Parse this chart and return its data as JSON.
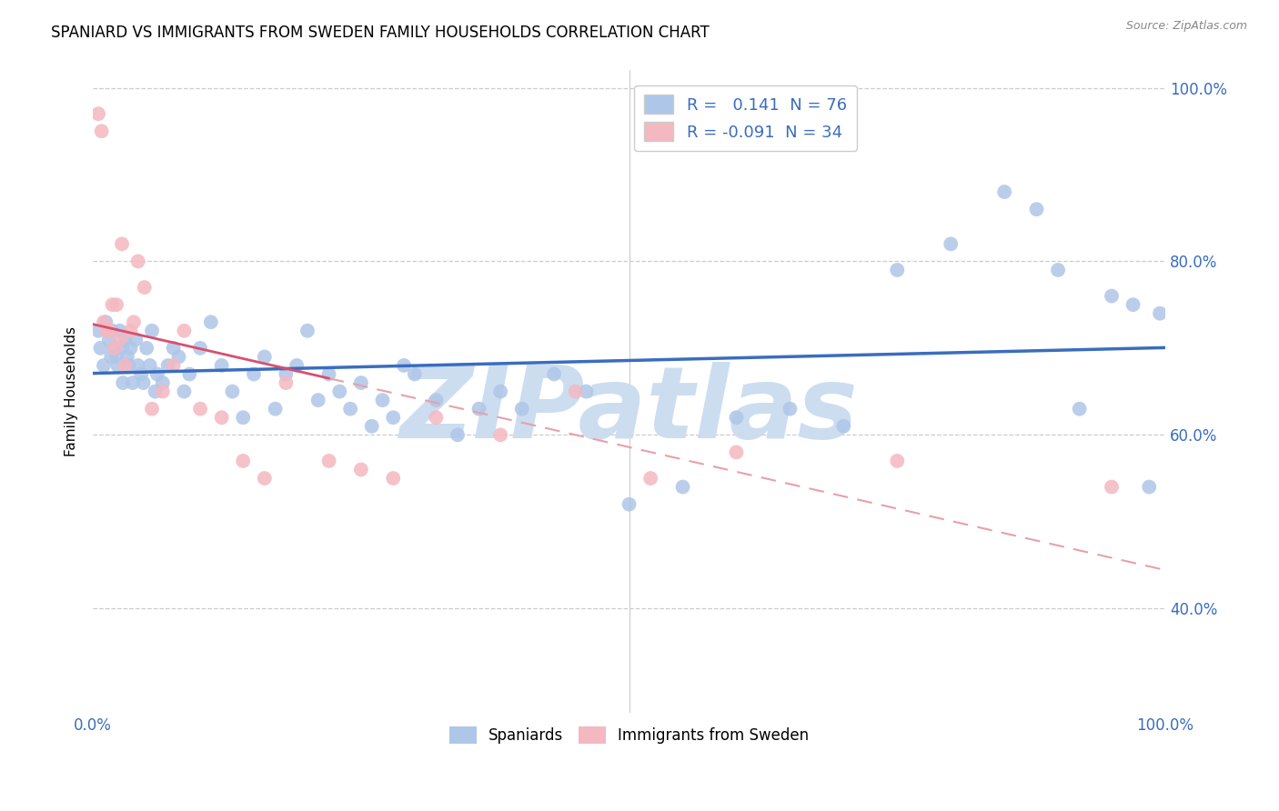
{
  "title": "SPANIARD VS IMMIGRANTS FROM SWEDEN FAMILY HOUSEHOLDS CORRELATION CHART",
  "source": "Source: ZipAtlas.com",
  "ylabel": "Family Households",
  "xlim": [
    0.0,
    1.0
  ],
  "ylim": [
    0.28,
    1.02
  ],
  "spaniards_color": "#aec6e8",
  "immigrants_color": "#f4b8c1",
  "trendline_spaniards_color": "#3a6dbf",
  "trendline_immigrants_color": "#e8a0a8",
  "trendline_immigrants_solid_color": "#d94f6e",
  "watermark": "ZIPatlas",
  "watermark_color": "#ccddf0",
  "background_color": "#ffffff",
  "R_spaniards": 0.141,
  "N_spaniards": 76,
  "R_immigrants": -0.091,
  "N_immigrants": 34,
  "spaniards_x": [
    0.005,
    0.007,
    0.01,
    0.012,
    0.015,
    0.017,
    0.018,
    0.02,
    0.022,
    0.023,
    0.025,
    0.027,
    0.028,
    0.03,
    0.032,
    0.033,
    0.035,
    0.037,
    0.04,
    0.042,
    0.045,
    0.047,
    0.05,
    0.053,
    0.055,
    0.058,
    0.06,
    0.065,
    0.07,
    0.075,
    0.08,
    0.085,
    0.09,
    0.1,
    0.11,
    0.12,
    0.13,
    0.14,
    0.15,
    0.16,
    0.17,
    0.18,
    0.19,
    0.2,
    0.21,
    0.22,
    0.23,
    0.24,
    0.25,
    0.26,
    0.27,
    0.28,
    0.29,
    0.3,
    0.32,
    0.34,
    0.36,
    0.38,
    0.4,
    0.43,
    0.46,
    0.5,
    0.55,
    0.6,
    0.65,
    0.7,
    0.75,
    0.8,
    0.85,
    0.88,
    0.9,
    0.92,
    0.95,
    0.97,
    0.985,
    0.995
  ],
  "spaniards_y": [
    0.72,
    0.7,
    0.68,
    0.73,
    0.71,
    0.69,
    0.72,
    0.7,
    0.69,
    0.68,
    0.72,
    0.7,
    0.66,
    0.71,
    0.69,
    0.68,
    0.7,
    0.66,
    0.71,
    0.68,
    0.67,
    0.66,
    0.7,
    0.68,
    0.72,
    0.65,
    0.67,
    0.66,
    0.68,
    0.7,
    0.69,
    0.65,
    0.67,
    0.7,
    0.73,
    0.68,
    0.65,
    0.62,
    0.67,
    0.69,
    0.63,
    0.67,
    0.68,
    0.72,
    0.64,
    0.67,
    0.65,
    0.63,
    0.66,
    0.61,
    0.64,
    0.62,
    0.68,
    0.67,
    0.64,
    0.6,
    0.63,
    0.65,
    0.63,
    0.67,
    0.65,
    0.52,
    0.54,
    0.62,
    0.63,
    0.61,
    0.79,
    0.82,
    0.88,
    0.86,
    0.79,
    0.63,
    0.76,
    0.75,
    0.54,
    0.74
  ],
  "immigrants_x": [
    0.005,
    0.008,
    0.01,
    0.013,
    0.015,
    0.018,
    0.02,
    0.022,
    0.025,
    0.027,
    0.03,
    0.035,
    0.038,
    0.042,
    0.048,
    0.055,
    0.065,
    0.075,
    0.085,
    0.1,
    0.12,
    0.14,
    0.16,
    0.18,
    0.22,
    0.25,
    0.28,
    0.32,
    0.38,
    0.45,
    0.52,
    0.6,
    0.75,
    0.95
  ],
  "immigrants_y": [
    0.97,
    0.95,
    0.73,
    0.72,
    0.72,
    0.75,
    0.7,
    0.75,
    0.71,
    0.82,
    0.68,
    0.72,
    0.73,
    0.8,
    0.77,
    0.63,
    0.65,
    0.68,
    0.72,
    0.63,
    0.62,
    0.57,
    0.55,
    0.66,
    0.57,
    0.56,
    0.55,
    0.62,
    0.6,
    0.65,
    0.55,
    0.58,
    0.57,
    0.54
  ],
  "yticks": [
    0.4,
    0.6,
    0.8,
    1.0
  ],
  "ytick_labels": [
    "40.0%",
    "60.0%",
    "80.0%",
    "100.0%"
  ],
  "xtick_positions": [
    0.0,
    0.5,
    1.0
  ],
  "xtick_labels": [
    "0.0%",
    "",
    "100.0%"
  ]
}
